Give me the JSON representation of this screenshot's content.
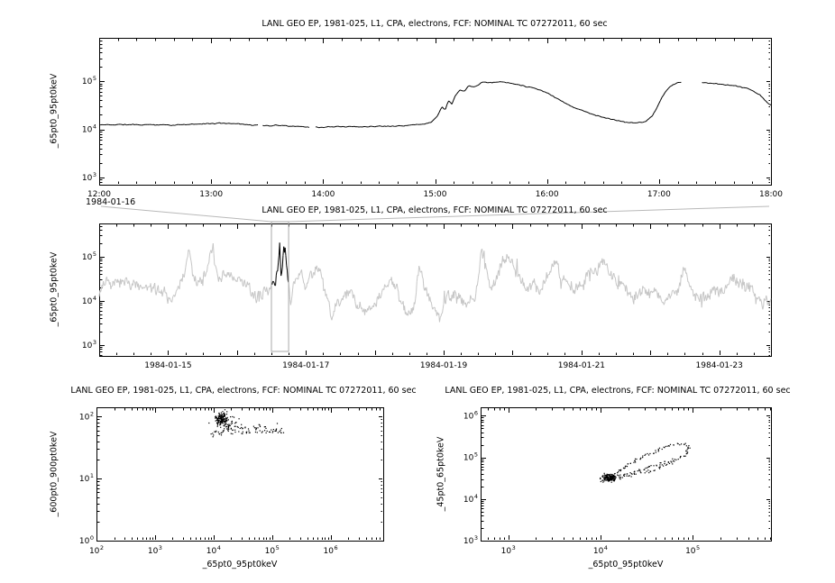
{
  "overlay": {
    "selection_box_color": "#a9a9a9",
    "connector_color": "#b9b9b9"
  },
  "chart_data": [
    {
      "id": "event-zoom-timeseries",
      "type": "line",
      "title": "LANL GEO EP, 1981-025, L1, CPA, electrons, FCF: NOMINAL TC 07272011, 60 sec",
      "ylabel": "_65pt0_95pt0keV",
      "x_sublabel": "1984-01-16",
      "xlim": [
        12,
        18
      ],
      "x_major": 1,
      "x_minor": 0.1666667,
      "xticks": [
        {
          "v": 12,
          "label": "12:00"
        },
        {
          "v": 13,
          "label": "13:00"
        },
        {
          "v": 14,
          "label": "14:00"
        },
        {
          "v": 15,
          "label": "15:00"
        },
        {
          "v": 16,
          "label": "16:00"
        },
        {
          "v": 17,
          "label": "17:00"
        },
        {
          "v": 18,
          "label": "18:00"
        }
      ],
      "ylog_range": [
        2.85,
        5.9
      ],
      "yticks_exp": [
        3,
        4,
        5
      ],
      "line_color": "#000000",
      "samples": 420,
      "noise_log": 0.008,
      "spike_prob": 0,
      "spike_amp": 0,
      "seed": 11,
      "gaps": [
        [
          13.42,
          13.46
        ],
        [
          13.88,
          13.92
        ],
        [
          17.21,
          17.37
        ]
      ],
      "keypoints_log": [
        [
          12.0,
          4.09
        ],
        [
          12.2,
          4.1
        ],
        [
          12.4,
          4.09
        ],
        [
          12.6,
          4.1
        ],
        [
          12.8,
          4.11
        ],
        [
          13.0,
          4.12
        ],
        [
          13.15,
          4.13
        ],
        [
          13.3,
          4.11
        ],
        [
          13.5,
          4.09
        ],
        [
          13.7,
          4.09
        ],
        [
          13.85,
          4.07
        ],
        [
          14.0,
          4.06
        ],
        [
          14.2,
          4.07
        ],
        [
          14.4,
          4.08
        ],
        [
          14.6,
          4.09
        ],
        [
          14.75,
          4.1
        ],
        [
          14.9,
          4.13
        ],
        [
          14.97,
          4.17
        ],
        [
          15.02,
          4.3
        ],
        [
          15.06,
          4.5
        ],
        [
          15.09,
          4.42
        ],
        [
          15.12,
          4.62
        ],
        [
          15.15,
          4.55
        ],
        [
          15.18,
          4.72
        ],
        [
          15.22,
          4.85
        ],
        [
          15.26,
          4.8
        ],
        [
          15.3,
          4.93
        ],
        [
          15.35,
          4.9
        ],
        [
          15.42,
          5.0
        ],
        [
          15.5,
          4.99
        ],
        [
          15.58,
          5.01
        ],
        [
          15.66,
          4.98
        ],
        [
          15.75,
          4.94
        ],
        [
          15.9,
          4.87
        ],
        [
          16.0,
          4.78
        ],
        [
          16.1,
          4.65
        ],
        [
          16.2,
          4.52
        ],
        [
          16.3,
          4.42
        ],
        [
          16.45,
          4.3
        ],
        [
          16.6,
          4.22
        ],
        [
          16.7,
          4.17
        ],
        [
          16.8,
          4.15
        ],
        [
          16.88,
          4.18
        ],
        [
          16.94,
          4.3
        ],
        [
          16.98,
          4.45
        ],
        [
          17.02,
          4.65
        ],
        [
          17.06,
          4.8
        ],
        [
          17.1,
          4.9
        ],
        [
          17.15,
          4.96
        ],
        [
          17.2,
          5.0
        ],
        [
          17.38,
          4.98
        ],
        [
          17.5,
          4.94
        ],
        [
          17.6,
          4.92
        ],
        [
          17.7,
          4.9
        ],
        [
          17.8,
          4.84
        ],
        [
          17.9,
          4.72
        ],
        [
          17.95,
          4.6
        ],
        [
          18.0,
          4.5
        ]
      ]
    },
    {
      "id": "context-timeseries",
      "type": "line",
      "title": "LANL GEO EP, 1981-025, L1, CPA, electrons, FCF: NOMINAL TC 07272011, 60 sec",
      "ylabel": "_65pt0_95pt0keV",
      "xlim": [
        0,
        9.75
      ],
      "x_major": 1,
      "x_minor": 0.25,
      "xticks": [
        {
          "v": 1,
          "label": "1984-01-15"
        },
        {
          "v": 3,
          "label": "1984-01-17"
        },
        {
          "v": 5,
          "label": "1984-01-19"
        },
        {
          "v": 7,
          "label": "1984-01-21"
        },
        {
          "v": 9,
          "label": "1984-01-23"
        }
      ],
      "ylog_range": [
        2.75,
        5.75
      ],
      "yticks_exp": [
        3,
        4,
        5
      ],
      "line_color": "#c6c6c6",
      "samples": 980,
      "noise_log": 0.1,
      "spike_prob": 0.012,
      "spike_amp": 0.3,
      "seed": 7,
      "gaps": [],
      "highlight": {
        "range": [
          2.5,
          2.75
        ],
        "color": "#000000"
      },
      "keypoints_log": [
        [
          0.0,
          4.25
        ],
        [
          0.1,
          4.45
        ],
        [
          0.2,
          4.2
        ],
        [
          0.35,
          4.1
        ],
        [
          0.5,
          4.2
        ],
        [
          0.65,
          4.05
        ],
        [
          0.8,
          4.0
        ],
        [
          0.95,
          4.2
        ],
        [
          1.1,
          4.15
        ],
        [
          1.22,
          4.45
        ],
        [
          1.3,
          4.9
        ],
        [
          1.36,
          4.3
        ],
        [
          1.5,
          4.25
        ],
        [
          1.58,
          4.6
        ],
        [
          1.65,
          4.95
        ],
        [
          1.72,
          4.3
        ],
        [
          1.85,
          4.35
        ],
        [
          2.0,
          4.25
        ],
        [
          2.15,
          4.1
        ],
        [
          2.3,
          3.95
        ],
        [
          2.42,
          4.05
        ],
        [
          2.5,
          4.1
        ],
        [
          2.56,
          4.12
        ],
        [
          2.6,
          4.6
        ],
        [
          2.62,
          5.0
        ],
        [
          2.64,
          4.3
        ],
        [
          2.67,
          4.95
        ],
        [
          2.7,
          5.0
        ],
        [
          2.73,
          4.4
        ],
        [
          2.75,
          4.3
        ],
        [
          2.78,
          3.7
        ],
        [
          2.82,
          4.2
        ],
        [
          2.9,
          4.35
        ],
        [
          3.0,
          4.25
        ],
        [
          3.1,
          4.45
        ],
        [
          3.2,
          4.6
        ],
        [
          3.3,
          4.0
        ],
        [
          3.38,
          3.5
        ],
        [
          3.45,
          4.2
        ],
        [
          3.55,
          4.35
        ],
        [
          3.7,
          4.25
        ],
        [
          3.85,
          4.05
        ],
        [
          4.0,
          4.2
        ],
        [
          4.15,
          4.35
        ],
        [
          4.3,
          4.1
        ],
        [
          4.42,
          3.8
        ],
        [
          4.5,
          3.6
        ],
        [
          4.58,
          4.3
        ],
        [
          4.65,
          5.1
        ],
        [
          4.72,
          4.5
        ],
        [
          4.8,
          4.3
        ],
        [
          4.88,
          3.9
        ],
        [
          4.95,
          3.7
        ],
        [
          5.05,
          4.4
        ],
        [
          5.15,
          4.25
        ],
        [
          5.3,
          4.2
        ],
        [
          5.45,
          4.35
        ],
        [
          5.55,
          5.15
        ],
        [
          5.65,
          4.6
        ],
        [
          5.75,
          4.4
        ],
        [
          5.85,
          4.85
        ],
        [
          5.95,
          4.9
        ],
        [
          6.05,
          4.35
        ],
        [
          6.2,
          4.2
        ],
        [
          6.35,
          4.3
        ],
        [
          6.5,
          4.6
        ],
        [
          6.6,
          5.1
        ],
        [
          6.7,
          4.5
        ],
        [
          6.85,
          4.25
        ],
        [
          7.0,
          4.3
        ],
        [
          7.15,
          4.35
        ],
        [
          7.3,
          4.7
        ],
        [
          7.45,
          4.3
        ],
        [
          7.6,
          4.2
        ],
        [
          7.75,
          4.15
        ],
        [
          7.9,
          4.25
        ],
        [
          8.05,
          4.35
        ],
        [
          8.2,
          4.25
        ],
        [
          8.35,
          4.3
        ],
        [
          8.5,
          4.85
        ],
        [
          8.6,
          4.4
        ],
        [
          8.75,
          4.25
        ],
        [
          8.9,
          4.3
        ],
        [
          9.05,
          4.3
        ],
        [
          9.2,
          4.55
        ],
        [
          9.35,
          4.3
        ],
        [
          9.5,
          4.2
        ],
        [
          9.6,
          4.1
        ],
        [
          9.75,
          4.2
        ]
      ]
    },
    {
      "id": "scatter-600-900-vs-65-95",
      "type": "scatter",
      "title": "LANL GEO EP, 1981-025, L1, CPA, electrons, FCF: NOMINAL TC 07272011, 60 sec",
      "ylabel": "_600pt0_900pt0keV",
      "xlabel": "_65pt0_95pt0keV",
      "xlog_range": [
        2,
        6.9
      ],
      "xticks_exp": [
        2,
        3,
        4,
        5,
        6
      ],
      "ylog_range": [
        0,
        2.15
      ],
      "yticks_exp": [
        0,
        1,
        2
      ],
      "dot_color": "#000000",
      "seed": 5,
      "clusters": [
        {
          "n": 150,
          "cx": 4.13,
          "cy": 1.97,
          "sx": 0.05,
          "sy": 0.05
        },
        {
          "n": 40,
          "cx": 4.25,
          "cy": 1.9,
          "sx": 0.1,
          "sy": 0.07
        }
      ],
      "trails": [
        {
          "n": 90,
          "path": [
            [
              4.0,
              1.72
            ],
            [
              4.2,
              1.8
            ],
            [
              4.45,
              1.77
            ],
            [
              4.7,
              1.82
            ],
            [
              4.95,
              1.78
            ],
            [
              5.1,
              1.83
            ],
            [
              5.18,
              1.76
            ]
          ],
          "jx": 0.05,
          "jy": 0.07
        }
      ]
    },
    {
      "id": "scatter-45-65-vs-65-95",
      "type": "scatter",
      "title": "LANL GEO EP, 1981-025, L1, CPA, electrons, FCF: NOMINAL TC 07272011, 60 sec",
      "ylabel": "_45pt0_65pt0keV",
      "xlabel": "_65pt0_95pt0keV",
      "xlog_range": [
        2.7,
        5.85
      ],
      "xticks_exp": [
        3,
        4,
        5
      ],
      "ylog_range": [
        3,
        6.2
      ],
      "yticks_exp": [
        3,
        4,
        5,
        6
      ],
      "dot_color": "#000000",
      "seed": 9,
      "clusters": [
        {
          "n": 160,
          "cx": 4.1,
          "cy": 4.5,
          "sx": 0.04,
          "sy": 0.05
        }
      ],
      "trails": [
        {
          "n": 130,
          "path": [
            [
              4.1,
              4.5
            ],
            [
              4.22,
              4.72
            ],
            [
              4.4,
              4.95
            ],
            [
              4.6,
              5.15
            ],
            [
              4.78,
              5.3
            ],
            [
              4.9,
              5.33
            ],
            [
              4.97,
              5.24
            ],
            [
              4.92,
              5.05
            ],
            [
              4.78,
              4.93
            ],
            [
              4.58,
              4.8
            ],
            [
              4.38,
              4.65
            ],
            [
              4.2,
              4.55
            ],
            [
              4.12,
              4.5
            ]
          ],
          "jx": 0.02,
          "jy": 0.025
        },
        {
          "n": 40,
          "path": [
            [
              4.1,
              4.45
            ],
            [
              4.3,
              4.55
            ],
            [
              4.55,
              4.68
            ],
            [
              4.8,
              4.9
            ]
          ],
          "jx": 0.03,
          "jy": 0.03
        }
      ]
    }
  ]
}
